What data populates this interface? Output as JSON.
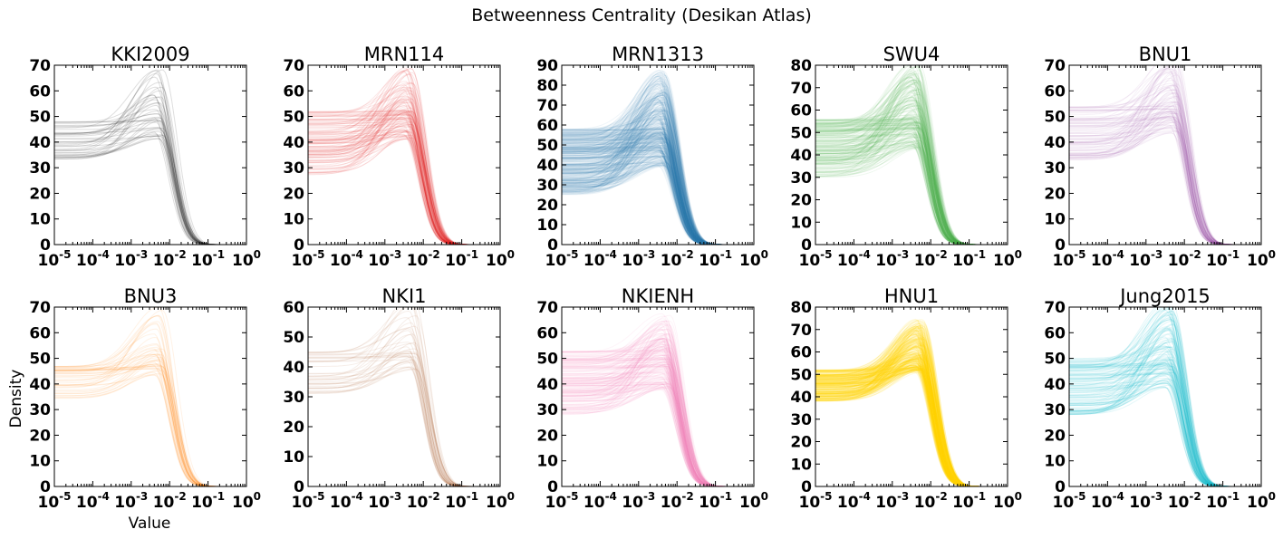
{
  "chart_data": {
    "type": "line",
    "title": "Betweenness Centrality (Desikan Atlas)",
    "xlabel": "Value",
    "ylabel": "Density",
    "xscale": "log",
    "xlim": [
      1e-05,
      1
    ],
    "xticks": [
      "10^-5",
      "10^-4",
      "10^-3",
      "10^-2",
      "10^-1",
      "10^0"
    ],
    "panels": [
      {
        "name": "KKI2009",
        "color": "#333333",
        "ylim": [
          0,
          70
        ],
        "yticks": [
          0,
          10,
          20,
          30,
          40,
          50,
          60,
          70
        ],
        "n_curves": 42,
        "plateau_range": [
          33,
          48
        ],
        "peak_range": [
          36,
          64
        ],
        "peak_x": 0.005,
        "opacity": 0.16
      },
      {
        "name": "MRN114",
        "color": "#e41a1c",
        "ylim": [
          0,
          70
        ],
        "yticks": [
          0,
          10,
          20,
          30,
          40,
          50,
          60,
          70
        ],
        "n_curves": 114,
        "plateau_range": [
          27,
          52
        ],
        "peak_range": [
          36,
          63
        ],
        "peak_x": 0.004,
        "opacity": 0.1
      },
      {
        "name": "MRN1313",
        "color": "#377eb8",
        "ylim": [
          0,
          90
        ],
        "yticks": [
          0,
          10,
          20,
          30,
          40,
          50,
          60,
          70,
          80,
          90
        ],
        "n_curves": 400,
        "plateau_range": [
          25,
          58
        ],
        "peak_range": [
          35,
          80
        ],
        "peak_x": 0.004,
        "opacity": 0.08
      },
      {
        "name": "SWU4",
        "color": "#4daf4a",
        "ylim": [
          0,
          80
        ],
        "yticks": [
          0,
          10,
          20,
          30,
          40,
          50,
          60,
          70,
          80
        ],
        "n_curves": 220,
        "plateau_range": [
          30,
          56
        ],
        "peak_range": [
          38,
          75
        ],
        "peak_x": 0.004,
        "opacity": 0.09
      },
      {
        "name": "BNU1",
        "color": "#984ea3",
        "ylim": [
          0,
          70
        ],
        "yticks": [
          0,
          10,
          20,
          30,
          40,
          50,
          60,
          70
        ],
        "n_curves": 100,
        "plateau_range": [
          33,
          54
        ],
        "peak_range": [
          38,
          67
        ],
        "peak_x": 0.005,
        "opacity": 0.08
      },
      {
        "name": "BNU3",
        "color": "#ff7f00",
        "ylim": [
          0,
          70
        ],
        "yticks": [
          0,
          10,
          20,
          30,
          40,
          50,
          60,
          70
        ],
        "n_curves": 47,
        "plateau_range": [
          34,
          47
        ],
        "peak_range": [
          38,
          63
        ],
        "peak_x": 0.005,
        "opacity": 0.1
      },
      {
        "name": "NKI1",
        "color": "#a65628",
        "ylim": [
          0,
          60
        ],
        "yticks": [
          0,
          10,
          20,
          30,
          40,
          50,
          60
        ],
        "n_curves": 40,
        "plateau_range": [
          31,
          45
        ],
        "peak_range": [
          34,
          58
        ],
        "peak_x": 0.005,
        "opacity": 0.1
      },
      {
        "name": "NKIENH",
        "color": "#f781bf",
        "ylim": [
          0,
          70
        ],
        "yticks": [
          0,
          10,
          20,
          30,
          40,
          50,
          60,
          70
        ],
        "n_curves": 190,
        "plateau_range": [
          28,
          53
        ],
        "peak_range": [
          33,
          60
        ],
        "peak_x": 0.005,
        "opacity": 0.09
      },
      {
        "name": "HNU1",
        "color": "#ffd700",
        "ylim": [
          0,
          80
        ],
        "yticks": [
          0,
          10,
          20,
          30,
          40,
          50,
          60,
          70,
          80
        ],
        "n_curves": 290,
        "plateau_range": [
          38,
          52
        ],
        "peak_range": [
          45,
          68
        ],
        "peak_x": 0.005,
        "opacity": 0.12
      },
      {
        "name": "Jung2015",
        "color": "#17becf",
        "ylim": [
          0,
          70
        ],
        "yticks": [
          0,
          10,
          20,
          30,
          40,
          50,
          60,
          70
        ],
        "n_curves": 120,
        "plateau_range": [
          28,
          50
        ],
        "peak_range": [
          34,
          66
        ],
        "peak_x": 0.004,
        "opacity": 0.12
      }
    ]
  }
}
